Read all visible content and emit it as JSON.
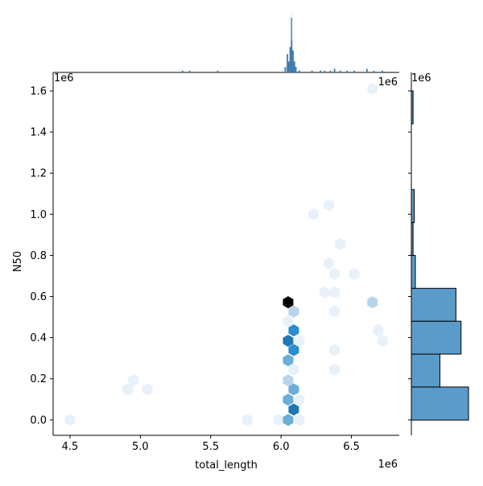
{
  "chart_data": {
    "type": "jointplot-hexbin",
    "xlabel": "total_length",
    "ylabel": "N50",
    "x_offset_label": "1e6",
    "y_offset_label": "1e6",
    "marg_x_offset_label": "1e6",
    "marg_y_offset_label": "1e6",
    "xlim": [
      4.38,
      6.84
    ],
    "ylim": [
      -0.075,
      1.69
    ],
    "xticks": [
      {
        "value": 4.5,
        "label": "4.5"
      },
      {
        "value": 5.0,
        "label": "5.0"
      },
      {
        "value": 5.5,
        "label": "5.5"
      },
      {
        "value": 6.0,
        "label": "6.0"
      },
      {
        "value": 6.5,
        "label": "6.5"
      }
    ],
    "yticks": [
      {
        "value": 0.0,
        "label": "0.0"
      },
      {
        "value": 0.2,
        "label": "0.2"
      },
      {
        "value": 0.4,
        "label": "0.4"
      },
      {
        "value": 0.6,
        "label": "0.6"
      },
      {
        "value": 0.8,
        "label": "0.8"
      },
      {
        "value": 1.0,
        "label": "1.0"
      },
      {
        "value": 1.2,
        "label": "1.2"
      },
      {
        "value": 1.4,
        "label": "1.4"
      },
      {
        "value": 1.6,
        "label": "1.6"
      }
    ],
    "colors": {
      "hex_scale": [
        "#e8f1fa",
        "#b7d4ea",
        "#6baed6",
        "#2b8cd0",
        "#1f77b4",
        "#000000"
      ],
      "hist_fill": "#5a9bc9",
      "hist_edge": "#000000",
      "marg_x_bars": "#3a78ad"
    },
    "hexbins": [
      {
        "x": 4.5,
        "y": 0.0,
        "level": 0
      },
      {
        "x": 4.91,
        "y": 0.148,
        "level": 0
      },
      {
        "x": 4.95,
        "y": 0.192,
        "level": 0
      },
      {
        "x": 5.05,
        "y": 0.148,
        "level": 0
      },
      {
        "x": 5.76,
        "y": 0.0,
        "level": 0
      },
      {
        "x": 5.98,
        "y": 0.0,
        "level": 0
      },
      {
        "x": 6.05,
        "y": 0.0,
        "level": 2
      },
      {
        "x": 6.05,
        "y": 0.098,
        "level": 2
      },
      {
        "x": 6.05,
        "y": 0.192,
        "level": 1
      },
      {
        "x": 6.05,
        "y": 0.29,
        "level": 2
      },
      {
        "x": 6.05,
        "y": 0.385,
        "level": 4
      },
      {
        "x": 6.05,
        "y": 0.48,
        "level": 0
      },
      {
        "x": 6.05,
        "y": 0.572,
        "level": 5
      },
      {
        "x": 6.09,
        "y": 0.05,
        "level": 4
      },
      {
        "x": 6.09,
        "y": 0.148,
        "level": 2
      },
      {
        "x": 6.09,
        "y": 0.245,
        "level": 0
      },
      {
        "x": 6.09,
        "y": 0.34,
        "level": 3
      },
      {
        "x": 6.09,
        "y": 0.435,
        "level": 3
      },
      {
        "x": 6.09,
        "y": 0.527,
        "level": 1
      },
      {
        "x": 6.13,
        "y": 0.0,
        "level": 0
      },
      {
        "x": 6.13,
        "y": 0.098,
        "level": 0
      },
      {
        "x": 6.13,
        "y": 0.385,
        "level": 0
      },
      {
        "x": 6.23,
        "y": 1.0,
        "level": 0
      },
      {
        "x": 6.31,
        "y": 0.62,
        "level": 0
      },
      {
        "x": 6.34,
        "y": 1.045,
        "level": 0
      },
      {
        "x": 6.34,
        "y": 0.762,
        "level": 0
      },
      {
        "x": 6.38,
        "y": 0.71,
        "level": 0
      },
      {
        "x": 6.38,
        "y": 0.62,
        "level": 0
      },
      {
        "x": 6.38,
        "y": 0.527,
        "level": 0
      },
      {
        "x": 6.38,
        "y": 0.34,
        "level": 0
      },
      {
        "x": 6.38,
        "y": 0.245,
        "level": 0
      },
      {
        "x": 6.42,
        "y": 0.855,
        "level": 0
      },
      {
        "x": 6.52,
        "y": 0.71,
        "level": 0
      },
      {
        "x": 6.65,
        "y": 1.61,
        "level": 0
      },
      {
        "x": 6.65,
        "y": 0.572,
        "level": 1
      },
      {
        "x": 6.69,
        "y": 0.435,
        "level": 0
      },
      {
        "x": 6.72,
        "y": 0.385,
        "level": 0
      }
    ],
    "marginal_y_hist": [
      {
        "y0": -0.001,
        "y1": 0.16,
        "count": 100
      },
      {
        "y0": 0.16,
        "y1": 0.32,
        "count": 50
      },
      {
        "y0": 0.32,
        "y1": 0.48,
        "count": 87
      },
      {
        "y0": 0.48,
        "y1": 0.64,
        "count": 78
      },
      {
        "y0": 0.64,
        "y1": 0.8,
        "count": 7
      },
      {
        "y0": 0.8,
        "y1": 0.96,
        "count": 3
      },
      {
        "y0": 0.96,
        "y1": 1.12,
        "count": 5
      },
      {
        "y0": 1.44,
        "y1": 1.6,
        "count": 3
      }
    ],
    "marginal_x_hist": [
      {
        "x": 5.3,
        "count": 1
      },
      {
        "x": 5.35,
        "count": 1
      },
      {
        "x": 5.55,
        "count": 1
      },
      {
        "x": 6.03,
        "count": 3
      },
      {
        "x": 6.045,
        "count": 10
      },
      {
        "x": 6.055,
        "count": 6
      },
      {
        "x": 6.065,
        "count": 14
      },
      {
        "x": 6.075,
        "count": 30
      },
      {
        "x": 6.085,
        "count": 12
      },
      {
        "x": 6.095,
        "count": 6
      },
      {
        "x": 6.105,
        "count": 3
      },
      {
        "x": 6.13,
        "count": 1
      },
      {
        "x": 6.22,
        "count": 1
      },
      {
        "x": 6.28,
        "count": 1
      },
      {
        "x": 6.31,
        "count": 1
      },
      {
        "x": 6.35,
        "count": 1
      },
      {
        "x": 6.38,
        "count": 2
      },
      {
        "x": 6.42,
        "count": 1
      },
      {
        "x": 6.47,
        "count": 1
      },
      {
        "x": 6.52,
        "count": 1
      },
      {
        "x": 6.61,
        "count": 2
      },
      {
        "x": 6.66,
        "count": 1
      },
      {
        "x": 6.72,
        "count": 1
      }
    ]
  }
}
